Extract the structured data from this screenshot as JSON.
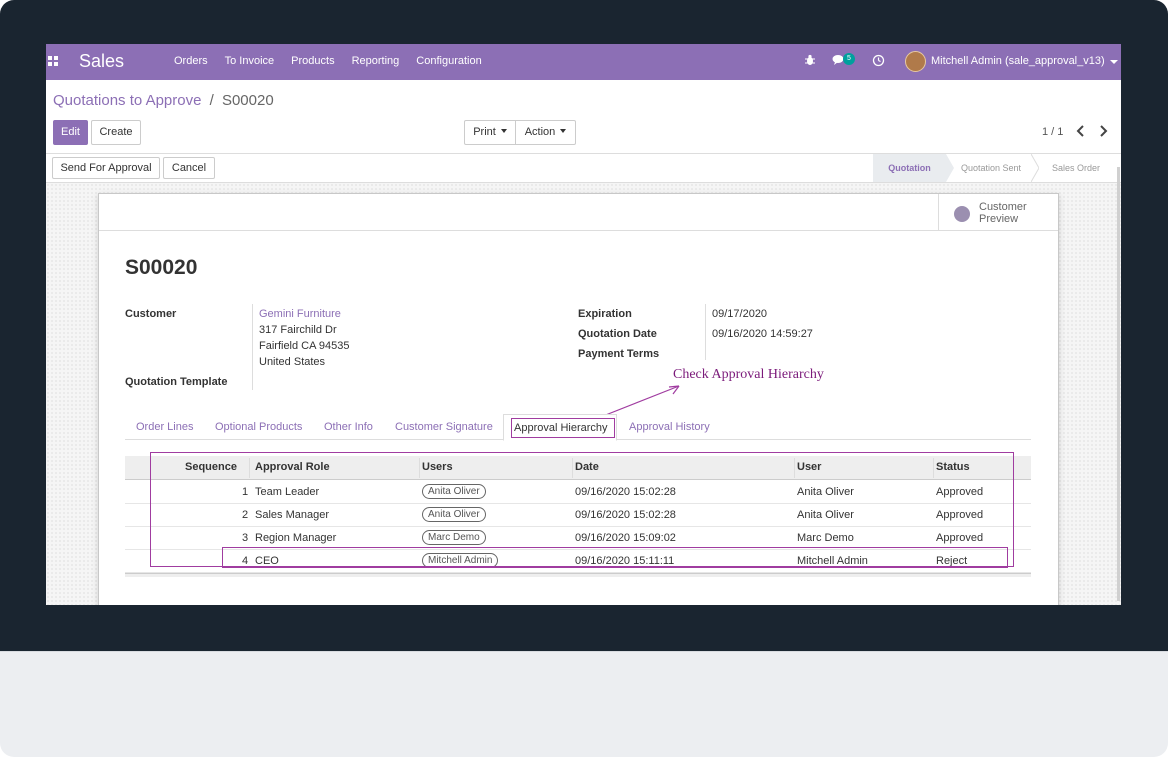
{
  "navbar": {
    "brand": "Sales",
    "menu": [
      "Orders",
      "To Invoice",
      "Products",
      "Reporting",
      "Configuration"
    ],
    "chat_count": "5",
    "user": "Mitchell Admin (sale_approval_v13)"
  },
  "breadcrumb": {
    "parent": "Quotations to Approve",
    "separator": "/",
    "current": "S00020"
  },
  "buttons": {
    "edit": "Edit",
    "create": "Create",
    "print": "Print",
    "action": "Action",
    "send_for_approval": "Send For Approval",
    "cancel": "Cancel"
  },
  "pager": "1 / 1",
  "stages": [
    {
      "label": "Quotation",
      "active": true
    },
    {
      "label": "Quotation Sent",
      "active": false
    },
    {
      "label": "Sales Order",
      "active": false
    }
  ],
  "smart_button": {
    "line1": "Customer",
    "line2": "Preview"
  },
  "record": {
    "name": "S00020",
    "customer_label": "Customer",
    "customer_name": "Gemini Furniture",
    "address_line1": "317 Fairchild Dr",
    "address_line2": "Fairfield CA 94535",
    "address_line3": "United States",
    "template_label": "Quotation Template",
    "expiration_label": "Expiration",
    "expiration": "09/17/2020",
    "quotation_date_label": "Quotation Date",
    "quotation_date": "09/16/2020 14:59:27",
    "payment_terms_label": "Payment Terms"
  },
  "annotation": "Check Approval Hierarchy",
  "tabs": [
    "Order Lines",
    "Optional Products",
    "Other Info",
    "Customer Signature",
    "Approval Hierarchy",
    "Approval History"
  ],
  "active_tab": "Approval Hierarchy",
  "grid": {
    "columns": [
      "Sequence",
      "Approval Role",
      "Users",
      "Date",
      "User",
      "Status"
    ],
    "rows": [
      {
        "seq": "1",
        "role": "Team Leader",
        "users": "Anita Oliver",
        "date": "09/16/2020 15:02:28",
        "user": "Anita Oliver",
        "status": "Approved"
      },
      {
        "seq": "2",
        "role": "Sales Manager",
        "users": "Anita Oliver",
        "date": "09/16/2020 15:02:28",
        "user": "Anita Oliver",
        "status": "Approved"
      },
      {
        "seq": "3",
        "role": "Region Manager",
        "users": "Marc Demo",
        "date": "09/16/2020 15:09:02",
        "user": "Marc Demo",
        "status": "Approved"
      },
      {
        "seq": "4",
        "role": "CEO",
        "users": "Mitchell Admin",
        "date": "09/16/2020 15:11:11",
        "user": "Mitchell Admin",
        "status": "Reject"
      }
    ]
  },
  "colors": {
    "brand": "#8c6fb5",
    "annotation": "#a03ca0"
  }
}
